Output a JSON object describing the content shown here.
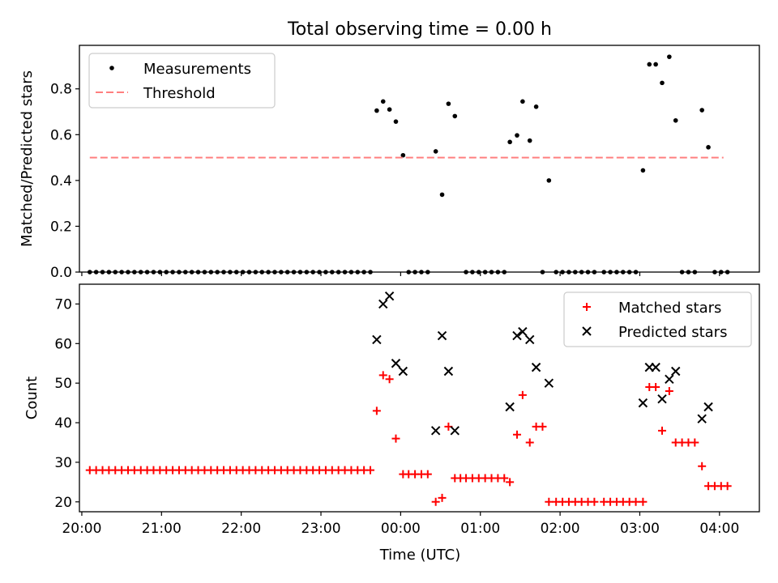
{
  "figure_title": "Total observing time = 0.00 h",
  "chart_data": [
    {
      "type": "scatter",
      "ylabel": "Matched/Predicted stars",
      "xlabel": "",
      "xlim": [
        -4.03,
        4.5
      ],
      "ylim": [
        0,
        0.99
      ],
      "grid": false,
      "legend_position": "top-left",
      "yticks": [
        0.0,
        0.2,
        0.4,
        0.6,
        0.8
      ],
      "ytick_labels": [
        "0.0",
        "0.2",
        "0.4",
        "0.6",
        "0.8"
      ],
      "series": [
        {
          "name": "Measurements",
          "color": "#000000",
          "marker": "dot",
          "points": [
            [
              -3.9,
              0
            ],
            [
              -3.82,
              0
            ],
            [
              -3.74,
              0
            ],
            [
              -3.66,
              0
            ],
            [
              -3.58,
              0
            ],
            [
              -3.5,
              0
            ],
            [
              -3.42,
              0
            ],
            [
              -3.34,
              0
            ],
            [
              -3.26,
              0
            ],
            [
              -3.18,
              0
            ],
            [
              -3.1,
              0
            ],
            [
              -3.02,
              0
            ],
            [
              -2.94,
              0
            ],
            [
              -2.86,
              0
            ],
            [
              -2.78,
              0
            ],
            [
              -2.7,
              0
            ],
            [
              -2.62,
              0
            ],
            [
              -2.54,
              0
            ],
            [
              -2.46,
              0
            ],
            [
              -2.38,
              0
            ],
            [
              -2.3,
              0
            ],
            [
              -2.22,
              0
            ],
            [
              -2.14,
              0
            ],
            [
              -2.06,
              0
            ],
            [
              -1.98,
              0
            ],
            [
              -1.9,
              0
            ],
            [
              -1.82,
              0
            ],
            [
              -1.74,
              0
            ],
            [
              -1.66,
              0
            ],
            [
              -1.58,
              0
            ],
            [
              -1.5,
              0
            ],
            [
              -1.42,
              0
            ],
            [
              -1.34,
              0
            ],
            [
              -1.26,
              0
            ],
            [
              -1.18,
              0
            ],
            [
              -1.1,
              0
            ],
            [
              -1.02,
              0
            ],
            [
              -0.94,
              0
            ],
            [
              -0.86,
              0
            ],
            [
              -0.78,
              0
            ],
            [
              -0.7,
              0
            ],
            [
              -0.62,
              0
            ],
            [
              -0.54,
              0
            ],
            [
              -0.46,
              0
            ],
            [
              -0.38,
              0
            ],
            [
              -0.3,
              0.705
            ],
            [
              -0.22,
              0.745
            ],
            [
              -0.14,
              0.71
            ],
            [
              -0.06,
              0.657
            ],
            [
              0.03,
              0.51
            ],
            [
              0.1,
              0
            ],
            [
              0.18,
              0
            ],
            [
              0.26,
              0
            ],
            [
              0.34,
              0
            ],
            [
              0.44,
              0.527
            ],
            [
              0.52,
              0.338
            ],
            [
              0.6,
              0.735
            ],
            [
              0.68,
              0.681
            ],
            [
              0.82,
              0
            ],
            [
              0.9,
              0
            ],
            [
              0.98,
              0
            ],
            [
              1.06,
              0
            ],
            [
              1.14,
              0
            ],
            [
              1.22,
              0
            ],
            [
              1.3,
              0
            ],
            [
              1.37,
              0.568
            ],
            [
              1.46,
              0.597
            ],
            [
              1.53,
              0.745
            ],
            [
              1.62,
              0.574
            ],
            [
              1.7,
              0.722
            ],
            [
              1.78,
              0
            ],
            [
              1.86,
              0.4
            ],
            [
              1.95,
              0
            ],
            [
              2.03,
              0
            ],
            [
              2.11,
              0
            ],
            [
              2.19,
              0
            ],
            [
              2.27,
              0
            ],
            [
              2.35,
              0
            ],
            [
              2.43,
              0
            ],
            [
              2.55,
              0
            ],
            [
              2.63,
              0
            ],
            [
              2.71,
              0
            ],
            [
              2.79,
              0
            ],
            [
              2.87,
              0
            ],
            [
              2.95,
              0
            ],
            [
              3.04,
              0.444
            ],
            [
              3.12,
              0.907
            ],
            [
              3.2,
              0.907
            ],
            [
              3.28,
              0.826
            ],
            [
              3.37,
              0.94
            ],
            [
              3.45,
              0.662
            ],
            [
              3.53,
              0
            ],
            [
              3.61,
              0
            ],
            [
              3.69,
              0
            ],
            [
              3.78,
              0.707
            ],
            [
              3.86,
              0.545
            ],
            [
              3.94,
              0
            ],
            [
              4.02,
              0
            ],
            [
              4.1,
              0
            ]
          ]
        },
        {
          "name": "Threshold",
          "color": "#ff7f7f",
          "marker": "dashed-line",
          "points": [
            [
              -3.9,
              0.5
            ],
            [
              4.05,
              0.5
            ]
          ]
        }
      ]
    },
    {
      "type": "scatter",
      "ylabel": "Count",
      "xlabel": "Time (UTC)",
      "xlim": [
        -4.03,
        4.5
      ],
      "ylim": [
        17.5,
        75
      ],
      "grid": false,
      "legend_position": "top-right",
      "xticks": [
        -4,
        -3,
        -2,
        -1,
        0,
        1,
        2,
        3,
        4
      ],
      "xtick_labels": [
        "20:00",
        "21:00",
        "22:00",
        "23:00",
        "00:00",
        "01:00",
        "02:00",
        "03:00",
        "04:00"
      ],
      "yticks": [
        20,
        30,
        40,
        50,
        60,
        70
      ],
      "ytick_labels": [
        "20",
        "30",
        "40",
        "50",
        "60",
        "70"
      ],
      "series": [
        {
          "name": "Matched stars",
          "color": "#ff0000",
          "marker": "plus",
          "points": [
            [
              -3.9,
              28
            ],
            [
              -3.82,
              28
            ],
            [
              -3.74,
              28
            ],
            [
              -3.66,
              28
            ],
            [
              -3.58,
              28
            ],
            [
              -3.5,
              28
            ],
            [
              -3.42,
              28
            ],
            [
              -3.34,
              28
            ],
            [
              -3.26,
              28
            ],
            [
              -3.18,
              28
            ],
            [
              -3.1,
              28
            ],
            [
              -3.02,
              28
            ],
            [
              -2.94,
              28
            ],
            [
              -2.86,
              28
            ],
            [
              -2.78,
              28
            ],
            [
              -2.7,
              28
            ],
            [
              -2.62,
              28
            ],
            [
              -2.54,
              28
            ],
            [
              -2.46,
              28
            ],
            [
              -2.38,
              28
            ],
            [
              -2.3,
              28
            ],
            [
              -2.22,
              28
            ],
            [
              -2.14,
              28
            ],
            [
              -2.06,
              28
            ],
            [
              -1.98,
              28
            ],
            [
              -1.9,
              28
            ],
            [
              -1.82,
              28
            ],
            [
              -1.74,
              28
            ],
            [
              -1.66,
              28
            ],
            [
              -1.58,
              28
            ],
            [
              -1.5,
              28
            ],
            [
              -1.42,
              28
            ],
            [
              -1.34,
              28
            ],
            [
              -1.26,
              28
            ],
            [
              -1.18,
              28
            ],
            [
              -1.1,
              28
            ],
            [
              -1.02,
              28
            ],
            [
              -0.94,
              28
            ],
            [
              -0.86,
              28
            ],
            [
              -0.78,
              28
            ],
            [
              -0.7,
              28
            ],
            [
              -0.62,
              28
            ],
            [
              -0.54,
              28
            ],
            [
              -0.46,
              28
            ],
            [
              -0.38,
              28
            ],
            [
              -0.3,
              43
            ],
            [
              -0.22,
              52
            ],
            [
              -0.14,
              51
            ],
            [
              -0.06,
              36
            ],
            [
              0.03,
              27
            ],
            [
              0.1,
              27
            ],
            [
              0.18,
              27
            ],
            [
              0.26,
              27
            ],
            [
              0.34,
              27
            ],
            [
              0.44,
              20
            ],
            [
              0.52,
              21
            ],
            [
              0.6,
              39
            ],
            [
              0.68,
              26
            ],
            [
              0.75,
              26
            ],
            [
              0.82,
              26
            ],
            [
              0.9,
              26
            ],
            [
              0.98,
              26
            ],
            [
              1.06,
              26
            ],
            [
              1.14,
              26
            ],
            [
              1.22,
              26
            ],
            [
              1.3,
              26
            ],
            [
              1.37,
              25
            ],
            [
              1.46,
              37
            ],
            [
              1.53,
              47
            ],
            [
              1.62,
              35
            ],
            [
              1.7,
              39
            ],
            [
              1.78,
              39
            ],
            [
              1.86,
              20
            ],
            [
              1.95,
              20
            ],
            [
              2.03,
              20
            ],
            [
              2.11,
              20
            ],
            [
              2.19,
              20
            ],
            [
              2.27,
              20
            ],
            [
              2.35,
              20
            ],
            [
              2.43,
              20
            ],
            [
              2.55,
              20
            ],
            [
              2.63,
              20
            ],
            [
              2.71,
              20
            ],
            [
              2.79,
              20
            ],
            [
              2.87,
              20
            ],
            [
              2.95,
              20
            ],
            [
              3.04,
              20
            ],
            [
              3.12,
              49
            ],
            [
              3.2,
              49
            ],
            [
              3.28,
              38
            ],
            [
              3.37,
              48
            ],
            [
              3.45,
              35
            ],
            [
              3.53,
              35
            ],
            [
              3.61,
              35
            ],
            [
              3.69,
              35
            ],
            [
              3.78,
              29
            ],
            [
              3.86,
              24
            ],
            [
              3.94,
              24
            ],
            [
              4.02,
              24
            ],
            [
              4.1,
              24
            ]
          ]
        },
        {
          "name": "Predicted stars",
          "color": "#000000",
          "marker": "x",
          "points": [
            [
              -0.3,
              61
            ],
            [
              -0.22,
              70
            ],
            [
              -0.14,
              72
            ],
            [
              -0.06,
              55
            ],
            [
              0.03,
              53
            ],
            [
              0.44,
              38
            ],
            [
              0.52,
              62
            ],
            [
              0.6,
              53
            ],
            [
              0.68,
              38
            ],
            [
              1.37,
              44
            ],
            [
              1.46,
              62
            ],
            [
              1.53,
              63
            ],
            [
              1.62,
              61
            ],
            [
              1.7,
              54
            ],
            [
              1.86,
              50
            ],
            [
              3.04,
              45
            ],
            [
              3.12,
              54
            ],
            [
              3.2,
              54
            ],
            [
              3.28,
              46
            ],
            [
              3.37,
              51
            ],
            [
              3.45,
              53
            ],
            [
              3.78,
              41
            ],
            [
              3.86,
              44
            ]
          ]
        }
      ]
    }
  ]
}
